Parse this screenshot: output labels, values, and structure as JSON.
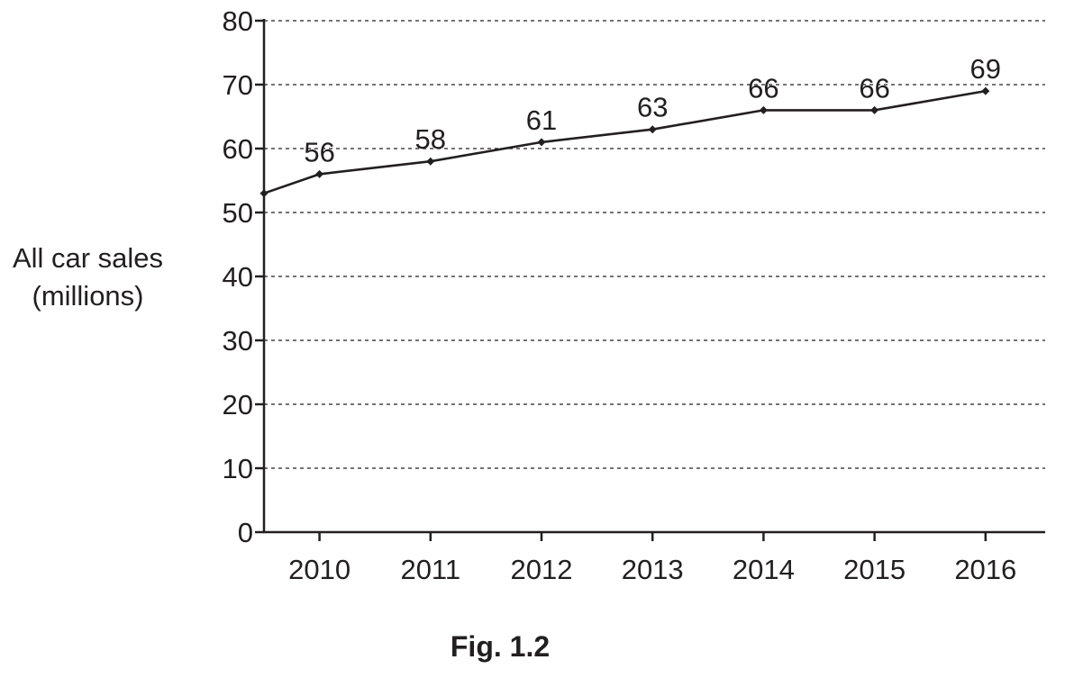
{
  "chart_data": {
    "type": "line",
    "ylabel_lines": [
      "All car sales",
      "(millions)"
    ],
    "caption": "Fig. 1.2",
    "ylim": [
      0,
      80
    ],
    "yticks": [
      0,
      10,
      20,
      30,
      40,
      50,
      60,
      70,
      80
    ],
    "categories": [
      "2010",
      "2011",
      "2012",
      "2013",
      "2014",
      "2015",
      "2016"
    ],
    "grid": "horizontal dashed",
    "series": [
      {
        "points": [
          {
            "x": "2009.5",
            "y": 53,
            "label": ""
          },
          {
            "x": "2010",
            "y": 56,
            "label": "56"
          },
          {
            "x": "2011",
            "y": 58,
            "label": "58"
          },
          {
            "x": "2012",
            "y": 61,
            "label": "61"
          },
          {
            "x": "2013",
            "y": 63,
            "label": "63"
          },
          {
            "x": "2014",
            "y": 66,
            "label": "66"
          },
          {
            "x": "2015",
            "y": 66,
            "label": "66"
          },
          {
            "x": "2016",
            "y": 69,
            "label": "69"
          }
        ]
      }
    ],
    "color": "#231f20"
  }
}
